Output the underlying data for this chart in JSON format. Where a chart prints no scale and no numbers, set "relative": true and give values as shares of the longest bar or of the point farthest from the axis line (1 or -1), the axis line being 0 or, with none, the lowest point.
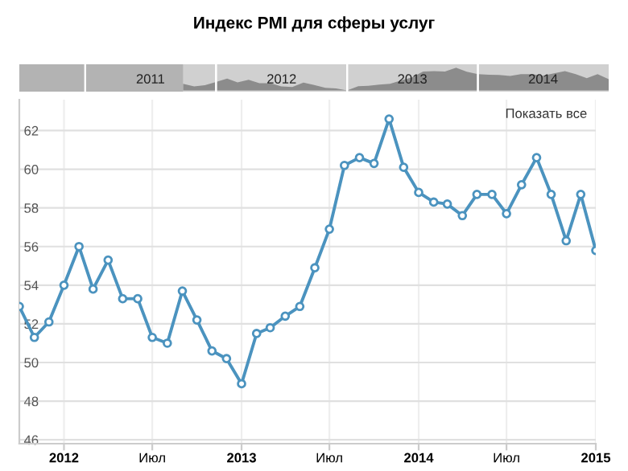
{
  "chart_data": [
    {
      "type": "area",
      "title": "Индекс PMI для сферы услуг",
      "relative": true,
      "color": "#8c8c8c",
      "x": [
        "2011-10",
        "2011-11",
        "2011-12",
        "2012-01",
        "2012-02",
        "2012-03",
        "2012-04",
        "2012-05",
        "2012-06",
        "2012-07",
        "2012-08",
        "2012-09",
        "2012-10",
        "2012-11",
        "2012-12",
        "2013-01",
        "2013-02",
        "2013-03",
        "2013-04",
        "2013-05",
        "2013-06",
        "2013-07",
        "2013-08",
        "2013-09",
        "2013-10",
        "2013-11",
        "2013-12",
        "2014-01",
        "2014-02",
        "2014-03",
        "2014-04",
        "2014-05",
        "2014-06",
        "2014-07",
        "2014-08",
        "2014-09",
        "2014-10",
        "2014-11",
        "2014-12",
        "2015-01"
      ],
      "values": [
        0.29,
        0.18,
        0.23,
        0.37,
        0.52,
        0.36,
        0.47,
        0.32,
        0.32,
        0.18,
        0.15,
        0.35,
        0.24,
        0.12,
        0.09,
        0,
        0.19,
        0.21,
        0.26,
        0.29,
        0.44,
        0.58,
        0.83,
        0.85,
        0.83,
        1,
        0.82,
        0.72,
        0.69,
        0.68,
        0.64,
        0.72,
        0.72,
        0.65,
        0.75,
        0.85,
        0.72,
        0.54,
        0.72,
        0.5
      ],
      "xlim": [
        "2010-07",
        "2015-01"
      ],
      "xticks": [
        {
          "value": "2011-01",
          "label": null
        },
        {
          "value": "2011-07-02",
          "label": "2011"
        },
        {
          "value": "2012-01",
          "label": null
        },
        {
          "value": "2012-07-02",
          "label": "2012"
        },
        {
          "value": "2013-01",
          "label": null
        },
        {
          "value": "2013-07-02",
          "label": "2013"
        },
        {
          "value": "2014-01",
          "label": null
        },
        {
          "value": "2014-07-02",
          "label": "2014"
        }
      ],
      "bands": [
        {
          "axis": "x",
          "from": "2010-07",
          "to": "2011-10",
          "color": "#b3b3b3"
        }
      ],
      "grid": "x"
    },
    {
      "type": "line",
      "color": "#4b93bf",
      "marker": "circle",
      "line_style": "solid",
      "x": [
        "2011-10",
        "2011-11",
        "2011-12",
        "2012-01",
        "2012-02",
        "2012-03",
        "2012-04",
        "2012-05",
        "2012-06",
        "2012-07",
        "2012-08",
        "2012-09",
        "2012-10",
        "2012-11",
        "2012-12",
        "2013-01",
        "2013-02",
        "2013-03",
        "2013-04",
        "2013-05",
        "2013-06",
        "2013-07",
        "2013-08",
        "2013-09",
        "2013-10",
        "2013-11",
        "2013-12",
        "2014-01",
        "2014-02",
        "2014-03",
        "2014-04",
        "2014-05",
        "2014-06",
        "2014-07",
        "2014-08",
        "2014-09",
        "2014-10",
        "2014-11",
        "2014-12",
        "2015-01"
      ],
      "values": [
        52.9,
        51.3,
        52.1,
        54.0,
        56.0,
        53.8,
        55.3,
        53.3,
        53.3,
        51.3,
        51.0,
        53.7,
        52.2,
        50.6,
        50.2,
        48.9,
        51.5,
        51.8,
        52.4,
        52.9,
        54.9,
        56.9,
        60.2,
        60.6,
        60.3,
        62.6,
        60.1,
        58.8,
        58.3,
        58.2,
        57.6,
        58.7,
        58.7,
        57.7,
        59.2,
        60.6,
        58.7,
        56.3,
        58.7,
        55.8
      ],
      "xlim": [
        "2011-10",
        "2015-01"
      ],
      "xticks": [
        {
          "value": "2012-01",
          "label": "2012"
        },
        {
          "value": "2012-07",
          "label": "Июл"
        },
        {
          "value": "2013-01",
          "label": "2013"
        },
        {
          "value": "2013-07",
          "label": "Июл"
        },
        {
          "value": "2014-01",
          "label": "2014"
        },
        {
          "value": "2014-07",
          "label": "Июл"
        },
        {
          "value": "2015-01",
          "label": "2015"
        }
      ],
      "ylim": [
        45.8,
        63.6
      ],
      "yticks": [
        46,
        48,
        50,
        52,
        54,
        56,
        58,
        60,
        62
      ],
      "annotations": [
        "Показать все"
      ],
      "grid": true
    }
  ]
}
